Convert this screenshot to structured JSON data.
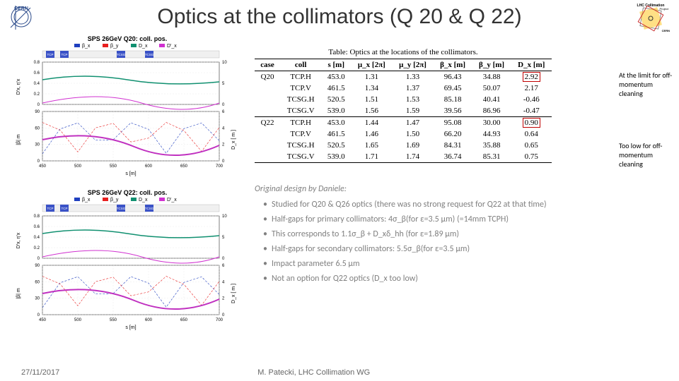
{
  "title": "Optics at the collimators (Q 20 & Q 22)",
  "logos": {
    "cern_label": "CERN",
    "rhs_title": "LHC Collimation",
    "rhs_sub": "Project",
    "rhs_footer": "CERN"
  },
  "charts": {
    "top": {
      "title": "SPS 26GeV Q20: coll. pos.",
      "legend": [
        "β_x",
        "β_y",
        "D_x",
        "D'_x"
      ],
      "legend_colors": [
        "#1f3fbf",
        "#e81f1f",
        "#109070",
        "#d030d0"
      ],
      "region_labels": [
        "TCP.H",
        "TCP.V",
        "TCSG.H",
        "TCSG.V"
      ],
      "region_color": "#3a52c7",
      "panel1": {
        "ylabel": "D'x, η'x",
        "ylim": [
          0,
          0.8
        ],
        "yticks": [
          0,
          0.2,
          0.4,
          0.6,
          0.8
        ],
        "y2lim": [
          0,
          10
        ],
        "y2ticks": [
          0,
          5,
          10
        ],
        "line_color": "#109070",
        "line2_color": "#d030d0",
        "grid_color": "#dddddd"
      },
      "panel2": {
        "ylabel": "|β| m",
        "ylim": [
          0,
          90
        ],
        "yticks": [
          0,
          30,
          60,
          90
        ],
        "y2label": "D_x [ m ]",
        "y2lim": [
          0,
          6
        ],
        "y2ticks": [
          0,
          2,
          4,
          6
        ],
        "x_label": "s [m]",
        "xlim": [
          450,
          700
        ],
        "xticks": [
          450,
          500,
          550,
          600,
          650,
          700
        ],
        "beta_x_color": "#1f3fbf",
        "beta_y_color": "#e81f1f",
        "dx_color": "#c030c0",
        "grid_color": "#dddddd"
      }
    },
    "bottom": {
      "title": "SPS 26GeV Q22: coll. pos.",
      "legend": [
        "β_x",
        "β_y",
        "D_x",
        "D'_x"
      ],
      "legend_colors": [
        "#1f3fbf",
        "#e81f1f",
        "#109070",
        "#d030d0"
      ],
      "region_labels": [
        "TCP.H",
        "TCP.V",
        "TCSG.H",
        "TCSG.V"
      ],
      "region_color": "#3a52c7",
      "panel1": {
        "ylabel": "D'x, η'x",
        "ylim": [
          0,
          0.8
        ],
        "yticks": [
          0,
          0.2,
          0.4,
          0.6,
          0.8
        ],
        "y2lim": [
          0,
          10
        ],
        "y2ticks": [
          0,
          5,
          10
        ],
        "line_color": "#109070",
        "line2_color": "#d030d0",
        "grid_color": "#dddddd"
      },
      "panel2": {
        "ylabel": "|β| m",
        "ylim": [
          0,
          90
        ],
        "yticks": [
          0,
          30,
          60,
          90
        ],
        "y2label": "D_x [ m ]",
        "y2lim": [
          0,
          6
        ],
        "y2ticks": [
          0,
          2,
          4,
          6
        ],
        "x_label": "s [m]",
        "xlim": [
          450,
          700
        ],
        "xticks": [
          450,
          500,
          550,
          600,
          650,
          700
        ],
        "beta_x_color": "#1f3fbf",
        "beta_y_color": "#e81f1f",
        "dx_color": "#c030c0",
        "grid_color": "#dddddd"
      }
    }
  },
  "table": {
    "caption": "Table:   Optics at the locations of the collimators.",
    "columns": [
      "case",
      "coll",
      "s [m]",
      "μ_x [2π]",
      "μ_y [2π]",
      "β_x [m]",
      "β_y [m]",
      "D_x [m]"
    ],
    "groups": [
      {
        "case": "Q20",
        "rows": [
          [
            "TCP.H",
            "453.0",
            "1.31",
            "1.33",
            "96.43",
            "34.88",
            "2.92"
          ],
          [
            "TCP.V",
            "461.5",
            "1.34",
            "1.37",
            "69.45",
            "50.07",
            "2.17"
          ],
          [
            "TCSG.H",
            "520.5",
            "1.51",
            "1.53",
            "85.18",
            "40.41",
            "-0.46"
          ],
          [
            "TCSG.V",
            "539.0",
            "1.56",
            "1.59",
            "39.56",
            "86.96",
            "-0.47"
          ]
        ],
        "boxed_row": 0
      },
      {
        "case": "Q22",
        "rows": [
          [
            "TCP.H",
            "453.0",
            "1.44",
            "1.47",
            "95.08",
            "30.00",
            "0.90"
          ],
          [
            "TCP.V",
            "461.5",
            "1.46",
            "1.50",
            "66.20",
            "44.93",
            "0.64"
          ],
          [
            "TCSG.H",
            "520.5",
            "1.65",
            "1.69",
            "84.31",
            "35.88",
            "0.65"
          ],
          [
            "TCSG.V",
            "539.0",
            "1.71",
            "1.74",
            "36.74",
            "85.31",
            "0.75"
          ]
        ],
        "boxed_row": 0
      }
    ]
  },
  "annotations": {
    "a1": "At the limit for off-momentum cleaning",
    "a2": "Too low for off-momentum cleaning"
  },
  "design": {
    "title": "Original design by Daniele:",
    "bullets": [
      "Studied for Q20 & Q26 optics (there was no strong request for Q22 at that time)",
      "Half-gaps for primary collimators: 4σ_β(for ε=3.5 μm) (=14mm TCPH)",
      "This corresponds to 1.1σ_β + D_xδ_hh (for ε=1.89 μm)",
      "Half-gaps for secondary collimators: 5.5σ_β(for ε=3.5 μm)",
      "Impact parameter 6.5 μm",
      "Not an option for Q22 optics (D_x too low)"
    ]
  },
  "footer": {
    "date": "27/11/2017",
    "credit": "M. Patecki, LHC Collimation WG"
  },
  "colors": {
    "highlight_box": "#c00000",
    "grey_text": "#808080",
    "chart_region": "#3a52c7"
  }
}
